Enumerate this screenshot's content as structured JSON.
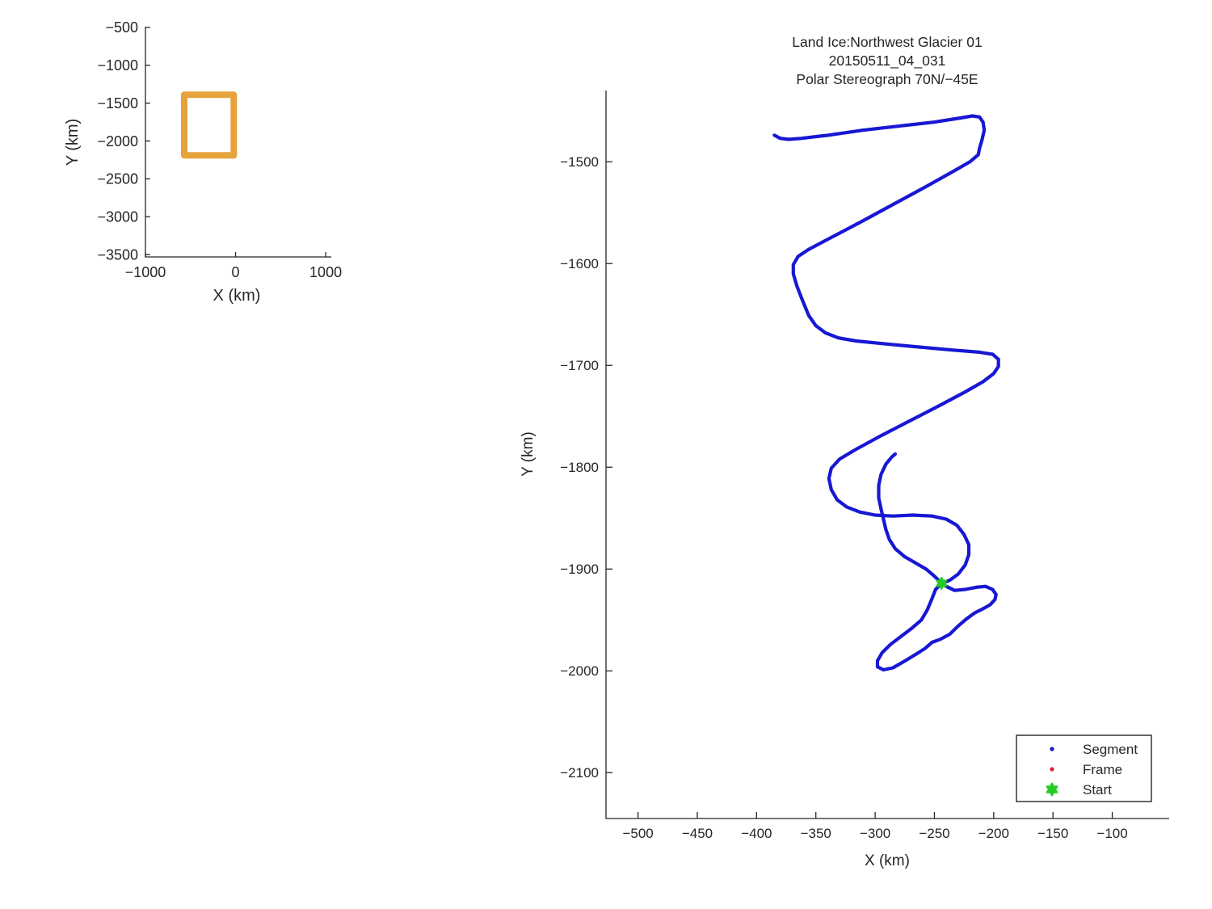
{
  "figure": {
    "background": "#ffffff"
  },
  "colors": {
    "axis": "#262626",
    "text": "#262626",
    "track_blue": "#1717D4",
    "frame_red": "#E02020",
    "start_green": "#25CB25",
    "coverage_amber": "#E6A33B",
    "legend_border": "#000000",
    "legend_bg": "#ffffff"
  },
  "overview": {
    "xlabel": "X (km)",
    "ylabel": "Y (km)"
  },
  "main": {
    "title_lines": [
      "Land Ice:Northwest Glacier 01",
      "20150511_04_031",
      "Polar Stereograph 70N/−45E"
    ],
    "xlabel": "X (km)",
    "ylabel": "Y (km)",
    "legend": {
      "items": [
        {
          "label": "Segment",
          "marker": "dot",
          "color": "#1717D4"
        },
        {
          "label": "Frame",
          "marker": "dot",
          "color": "#E02020"
        },
        {
          "label": "Start",
          "marker": "hexagram",
          "color": "#25CB25"
        }
      ]
    }
  },
  "chart_data": [
    {
      "type": "line",
      "role": "overview-coverage-map",
      "title": "",
      "xlabel": "X (km)",
      "ylabel": "Y (km)",
      "xlim": [
        -1000,
        1062
      ],
      "ylim": [
        -3532,
        -490
      ],
      "grid": false,
      "x_ticks": [
        -1000,
        0,
        1000
      ],
      "x_tick_labels": [
        "−1000",
        "0",
        "1000"
      ],
      "y_ticks": [
        -500,
        -1000,
        -1500,
        -2000,
        -2500,
        -3000,
        -3500
      ],
      "y_tick_labels": [
        "−500",
        "−1000",
        "−1500",
        "−2000",
        "−2500",
        "−3000",
        "−3500"
      ],
      "series": [
        {
          "name": "coverage-outline",
          "color": "#E6A33B",
          "line_width": 8,
          "closed": true,
          "points": [
            [
              -570,
              -1390
            ],
            [
              -20,
              -1390
            ],
            [
              -20,
              -2190
            ],
            [
              -570,
              -2190
            ]
          ]
        }
      ]
    },
    {
      "type": "line",
      "role": "flight-track",
      "title": "Land Ice:Northwest Glacier 01",
      "subtitle": "20150511_04_031",
      "subtitle2": "Polar Stereograph 70N/−45E",
      "xlabel": "X (km)",
      "ylabel": "Y (km)",
      "xlim": [
        -527,
        -52
      ],
      "ylim": [
        -2145,
        -1430
      ],
      "grid": false,
      "legend_position": "lower right",
      "legend_entries": [
        "Segment",
        "Frame",
        "Start"
      ],
      "x_ticks": [
        -500,
        -450,
        -400,
        -350,
        -300,
        -250,
        -200,
        -150,
        -100
      ],
      "x_tick_labels": [
        "−500",
        "−450",
        "−400",
        "−350",
        "−300",
        "−250",
        "−200",
        "−150",
        "−100"
      ],
      "y_ticks": [
        -1500,
        -1600,
        -1700,
        -1800,
        -1900,
        -2000,
        -2100
      ],
      "y_tick_labels": [
        "−1500",
        "−1600",
        "−1700",
        "−1800",
        "−1900",
        "−2000",
        "−2100"
      ],
      "series": [
        {
          "name": "Segment",
          "color": "#1717D4",
          "line_width": 4.2,
          "closed": false,
          "points": [
            [
              -385,
              -1474
            ],
            [
              -380,
              -1477
            ],
            [
              -373,
              -1478
            ],
            [
              -362,
              -1477
            ],
            [
              -340,
              -1474
            ],
            [
              -310,
              -1469
            ],
            [
              -280,
              -1465
            ],
            [
              -250,
              -1461
            ],
            [
              -228,
              -1457
            ],
            [
              -218,
              -1455
            ],
            [
              -212,
              -1456
            ],
            [
              -209,
              -1461
            ],
            [
              -208,
              -1469
            ],
            [
              -210,
              -1479
            ],
            [
              -212,
              -1487
            ],
            [
              -213,
              -1493
            ],
            [
              -220,
              -1500
            ],
            [
              -235,
              -1510
            ],
            [
              -258,
              -1525
            ],
            [
              -285,
              -1542
            ],
            [
              -312,
              -1559
            ],
            [
              -338,
              -1575
            ],
            [
              -356,
              -1586
            ],
            [
              -365,
              -1593
            ],
            [
              -369,
              -1601
            ],
            [
              -369,
              -1610
            ],
            [
              -366,
              -1622
            ],
            [
              -361,
              -1637
            ],
            [
              -356,
              -1651
            ],
            [
              -350,
              -1661
            ],
            [
              -342,
              -1668
            ],
            [
              -331,
              -1673
            ],
            [
              -316,
              -1676
            ],
            [
              -290,
              -1679
            ],
            [
              -262,
              -1682
            ],
            [
              -234,
              -1685
            ],
            [
              -212,
              -1687
            ],
            [
              -201,
              -1689
            ],
            [
              -196,
              -1694
            ],
            [
              -196,
              -1701
            ],
            [
              -200,
              -1708
            ],
            [
              -209,
              -1716
            ],
            [
              -224,
              -1726
            ],
            [
              -245,
              -1739
            ],
            [
              -270,
              -1754
            ],
            [
              -295,
              -1769
            ],
            [
              -317,
              -1783
            ],
            [
              -330,
              -1792
            ],
            [
              -337,
              -1801
            ],
            [
              -339,
              -1811
            ],
            [
              -337,
              -1822
            ],
            [
              -332,
              -1832
            ],
            [
              -324,
              -1839
            ],
            [
              -313,
              -1844
            ],
            [
              -300,
              -1847
            ],
            [
              -285,
              -1848
            ],
            [
              -268,
              -1847
            ],
            [
              -252,
              -1848
            ],
            [
              -240,
              -1851
            ],
            [
              -231,
              -1857
            ],
            [
              -225,
              -1866
            ],
            [
              -221,
              -1876
            ],
            [
              -221,
              -1886
            ],
            [
              -224,
              -1896
            ],
            [
              -230,
              -1905
            ],
            [
              -237,
              -1911
            ],
            [
              -244,
              -1914
            ],
            [
              -249,
              -1920
            ],
            [
              -252,
              -1929
            ],
            [
              -256,
              -1940
            ],
            [
              -261,
              -1950
            ],
            [
              -269,
              -1958
            ],
            [
              -278,
              -1966
            ],
            [
              -287,
              -1974
            ],
            [
              -294,
              -1982
            ],
            [
              -298,
              -1990
            ],
            [
              -298,
              -1996
            ],
            [
              -293,
              -1999
            ],
            [
              -285,
              -1997
            ],
            [
              -276,
              -1991
            ],
            [
              -266,
              -1984
            ],
            [
              -258,
              -1978
            ],
            [
              -252,
              -1972
            ],
            [
              -245,
              -1969
            ],
            [
              -237,
              -1964
            ],
            [
              -230,
              -1956
            ],
            [
              -223,
              -1949
            ],
            [
              -216,
              -1943
            ],
            [
              -209,
              -1939
            ],
            [
              -203,
              -1935
            ],
            [
              -199,
              -1930
            ],
            [
              -198,
              -1925
            ],
            [
              -201,
              -1920
            ],
            [
              -207,
              -1917
            ],
            [
              -215,
              -1918
            ],
            [
              -224,
              -1920
            ],
            [
              -233,
              -1921
            ],
            [
              -240,
              -1917
            ],
            [
              -244,
              -1914
            ],
            [
              -250,
              -1907
            ],
            [
              -257,
              -1900
            ],
            [
              -266,
              -1894
            ],
            [
              -275,
              -1888
            ],
            [
              -283,
              -1880
            ],
            [
              -288,
              -1871
            ],
            [
              -291,
              -1861
            ],
            [
              -293,
              -1851
            ],
            [
              -295,
              -1841
            ],
            [
              -297,
              -1830
            ],
            [
              -297,
              -1818
            ],
            [
              -295,
              -1807
            ],
            [
              -291,
              -1797
            ],
            [
              -286,
              -1790
            ],
            [
              -283,
              -1787
            ]
          ]
        },
        {
          "name": "Frame",
          "color": "#E02020",
          "line_width": 0,
          "closed": false,
          "points": []
        },
        {
          "name": "Start",
          "color": "#25CB25",
          "marker": "hexagram",
          "closed": false,
          "points": [
            [
              -244,
              -1914
            ]
          ]
        }
      ]
    }
  ]
}
